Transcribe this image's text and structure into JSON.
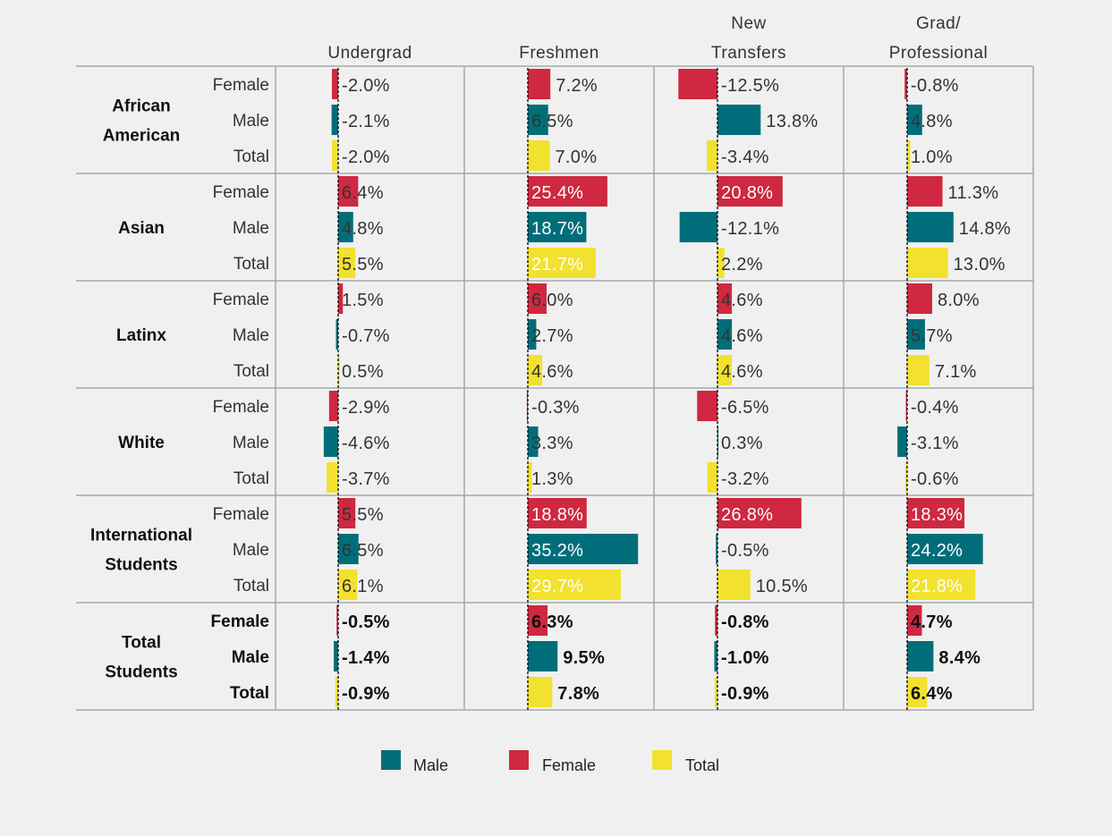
{
  "chart_data": {
    "type": "bar",
    "orientation": "horizontal",
    "value_unit": "%",
    "columns": [
      {
        "key": "undergrad",
        "label_lines": [
          "Undergrad"
        ]
      },
      {
        "key": "freshmen",
        "label_lines": [
          "Freshmen"
        ]
      },
      {
        "key": "new_transfers",
        "label_lines": [
          "New",
          "Transfers"
        ]
      },
      {
        "key": "grad_professional",
        "label_lines": [
          "Grad/",
          "Professional"
        ]
      }
    ],
    "groups": [
      {
        "label_lines": [
          "African",
          "American"
        ],
        "rows": [
          {
            "label": "Female",
            "series": "Female",
            "values": [
              -2.0,
              7.2,
              -12.5,
              -0.8
            ],
            "labels": [
              "-2.0%",
              "7.2%",
              "-12.5%",
              "-0.8%"
            ]
          },
          {
            "label": "Male",
            "series": "Male",
            "values": [
              -2.1,
              6.5,
              13.8,
              4.8
            ],
            "labels": [
              "-2.1%",
              "6.5%",
              "13.8%",
              "4.8%"
            ]
          },
          {
            "label": "Total",
            "series": "Total",
            "values": [
              -2.0,
              7.0,
              -3.4,
              1.0
            ],
            "labels": [
              "-2.0%",
              "7.0%",
              "-3.4%",
              "1.0%"
            ]
          }
        ]
      },
      {
        "label_lines": [
          "Asian"
        ],
        "rows": [
          {
            "label": "Female",
            "series": "Female",
            "values": [
              6.4,
              25.4,
              20.8,
              11.3
            ],
            "labels": [
              "6.4%",
              "25.4%",
              "20.8%",
              "11.3%"
            ]
          },
          {
            "label": "Male",
            "series": "Male",
            "values": [
              4.8,
              18.7,
              -12.1,
              14.8
            ],
            "labels": [
              "4.8%",
              "18.7%",
              "-12.1%",
              "14.8%"
            ]
          },
          {
            "label": "Total",
            "series": "Total",
            "values": [
              5.5,
              21.7,
              2.2,
              13.0
            ],
            "labels": [
              "5.5%",
              "21.7%",
              "2.2%",
              "13.0%"
            ]
          }
        ]
      },
      {
        "label_lines": [
          "Latinx"
        ],
        "rows": [
          {
            "label": "Female",
            "series": "Female",
            "values": [
              1.5,
              6.0,
              4.6,
              8.0
            ],
            "labels": [
              "1.5%",
              "6.0%",
              "4.6%",
              "8.0%"
            ]
          },
          {
            "label": "Male",
            "series": "Male",
            "values": [
              -0.7,
              2.7,
              4.6,
              5.7
            ],
            "labels": [
              "-0.7%",
              "2.7%",
              "4.6%",
              "5.7%"
            ]
          },
          {
            "label": "Total",
            "series": "Total",
            "values": [
              0.5,
              4.6,
              4.6,
              7.1
            ],
            "labels": [
              "0.5%",
              "4.6%",
              "4.6%",
              "7.1%"
            ]
          }
        ]
      },
      {
        "label_lines": [
          "White"
        ],
        "rows": [
          {
            "label": "Female",
            "series": "Female",
            "values": [
              -2.9,
              -0.3,
              -6.5,
              -0.4
            ],
            "labels": [
              "-2.9%",
              "-0.3%",
              "-6.5%",
              "-0.4%"
            ]
          },
          {
            "label": "Male",
            "series": "Male",
            "values": [
              -4.6,
              3.3,
              0.3,
              -3.1
            ],
            "labels": [
              "-4.6%",
              "3.3%",
              "0.3%",
              "-3.1%"
            ]
          },
          {
            "label": "Total",
            "series": "Total",
            "values": [
              -3.7,
              1.3,
              -3.2,
              -0.6
            ],
            "labels": [
              "-3.7%",
              "1.3%",
              "-3.2%",
              "-0.6%"
            ]
          }
        ]
      },
      {
        "label_lines": [
          "International",
          "Students"
        ],
        "rows": [
          {
            "label": "Female",
            "series": "Female",
            "values": [
              5.5,
              18.8,
              26.8,
              18.3
            ],
            "labels": [
              "5.5%",
              "18.8%",
              "26.8%",
              "18.3%"
            ]
          },
          {
            "label": "Male",
            "series": "Male",
            "values": [
              6.5,
              35.2,
              -0.5,
              24.2
            ],
            "labels": [
              "6.5%",
              "35.2%",
              "-0.5%",
              "24.2%"
            ]
          },
          {
            "label": "Total",
            "series": "Total",
            "values": [
              6.1,
              29.7,
              10.5,
              21.8
            ],
            "labels": [
              "6.1%",
              "29.7%",
              "10.5%",
              "21.8%"
            ]
          }
        ]
      },
      {
        "label_lines": [
          "Total",
          "Students"
        ],
        "bold": true,
        "rows": [
          {
            "label": "Female",
            "series": "Female",
            "values": [
              -0.5,
              6.3,
              -0.8,
              4.7
            ],
            "labels": [
              "-0.5%",
              "6.3%",
              "-0.8%",
              "4.7%"
            ]
          },
          {
            "label": "Male",
            "series": "Male",
            "values": [
              -1.4,
              9.5,
              -1.0,
              8.4
            ],
            "labels": [
              "-1.4%",
              "9.5%",
              "-1.0%",
              "8.4%"
            ]
          },
          {
            "label": "Total",
            "series": "Total",
            "values": [
              -0.9,
              7.8,
              -0.9,
              6.4
            ],
            "labels": [
              "-0.9%",
              "7.8%",
              "-0.9%",
              "6.4%"
            ]
          }
        ]
      }
    ],
    "legend": [
      {
        "name": "Male",
        "color": "#006e7a"
      },
      {
        "name": "Female",
        "color": "#cf2840"
      },
      {
        "name": "Total",
        "color": "#f2e12e"
      }
    ],
    "colors": {
      "Male": "#006e7a",
      "Female": "#cf2840",
      "Total": "#f2e12e"
    }
  }
}
